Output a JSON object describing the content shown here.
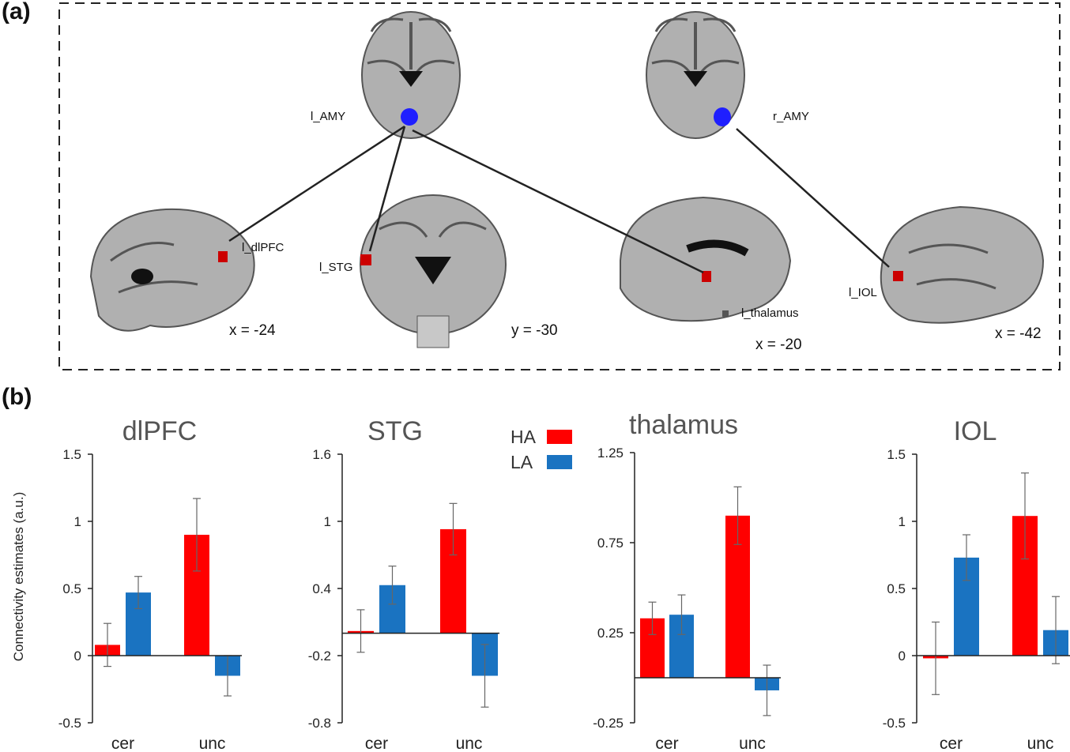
{
  "panels": {
    "a_label": "(a)",
    "b_label": "(b)"
  },
  "brain_panel": {
    "regions": {
      "l_amy": "l_AMY",
      "r_amy": "r_AMY",
      "l_dlpfc": "l_dlPFC",
      "l_stg": "l_STG",
      "l_thalamus": "l_thalamus",
      "l_iol": "l_IOL"
    },
    "coords": {
      "dlpfc": "x = -24",
      "stg": "y = -30",
      "thalamus": "x = -20",
      "iol": "x = -42"
    },
    "colors": {
      "seed": "#1f1fff",
      "target": "#cc0000",
      "line": "#222222"
    }
  },
  "legend": {
    "items": [
      {
        "label": "HA",
        "color": "#ff0000"
      },
      {
        "label": "LA",
        "color": "#1a73c1"
      }
    ]
  },
  "ylabel": "Connectivity estimates (a.u.)",
  "chart_data": [
    {
      "type": "bar",
      "title": "dlPFC",
      "categories": [
        "cer",
        "unc"
      ],
      "series": [
        {
          "name": "HA",
          "values": [
            0.08,
            0.9
          ],
          "errors": [
            0.16,
            0.27
          ]
        },
        {
          "name": "LA",
          "values": [
            0.47,
            -0.15
          ],
          "errors": [
            0.12,
            0.15
          ]
        }
      ],
      "ylim": [
        -0.5,
        1.5
      ],
      "ticks": [
        1.5,
        1,
        0.5,
        0,
        -0.5
      ],
      "tick_labels": [
        "1.5",
        "1",
        "0.5",
        "0",
        "-0.5"
      ]
    },
    {
      "type": "bar",
      "title": "STG",
      "categories": [
        "cer",
        "unc"
      ],
      "series": [
        {
          "name": "HA",
          "values": [
            0.02,
            0.93
          ],
          "errors": [
            0.19,
            0.23
          ]
        },
        {
          "name": "LA",
          "values": [
            0.43,
            -0.38
          ],
          "errors": [
            0.17,
            0.28
          ]
        }
      ],
      "ylim": [
        -0.8,
        1.6
      ],
      "ticks": [
        1.6,
        1,
        0.4,
        -0.2,
        -0.8
      ],
      "tick_labels": [
        "1.6",
        "1",
        "0.4",
        "-0.2",
        "-0.8"
      ]
    },
    {
      "type": "bar",
      "title": "thalamus",
      "categories": [
        "cer",
        "unc"
      ],
      "series": [
        {
          "name": "HA",
          "values": [
            0.33,
            0.9
          ],
          "errors": [
            0.09,
            0.16
          ]
        },
        {
          "name": "LA",
          "values": [
            0.35,
            -0.07
          ],
          "errors": [
            0.11,
            0.14
          ]
        }
      ],
      "ylim": [
        -0.25,
        1.25
      ],
      "ticks": [
        1.25,
        0.75,
        0.25,
        -0.25
      ],
      "tick_labels": [
        "1.25",
        "0.75",
        "0.25",
        "-0.25"
      ]
    },
    {
      "type": "bar",
      "title": "IOL",
      "categories": [
        "cer",
        "unc"
      ],
      "series": [
        {
          "name": "HA",
          "values": [
            -0.02,
            1.04
          ],
          "errors": [
            0.27,
            0.32
          ]
        },
        {
          "name": "LA",
          "values": [
            0.73,
            0.19
          ],
          "errors": [
            0.17,
            0.25
          ]
        }
      ],
      "ylim": [
        -0.5,
        1.5
      ],
      "ticks": [
        1.5,
        1,
        0.5,
        0,
        -0.5
      ],
      "tick_labels": [
        "1.5",
        "1",
        "0.5",
        "0",
        "-0.5"
      ]
    }
  ]
}
